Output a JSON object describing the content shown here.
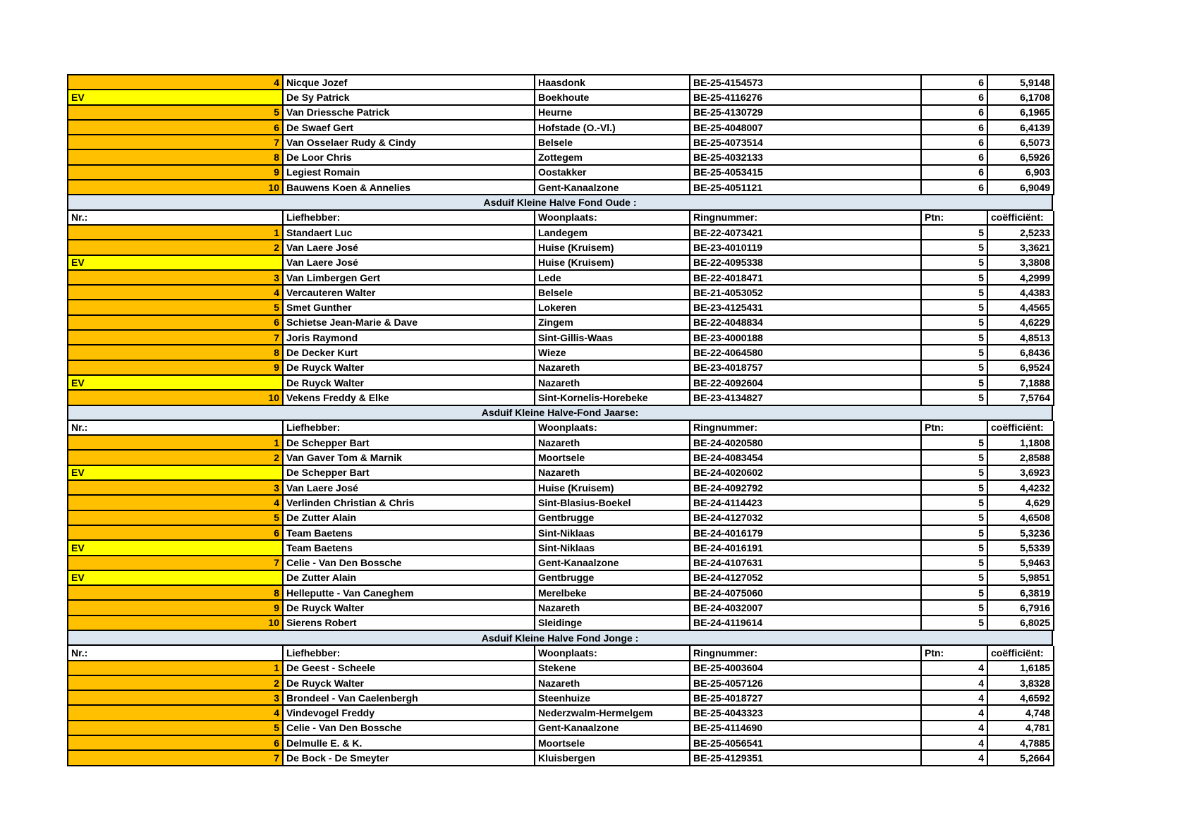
{
  "colors": {
    "rank_fill": "#FFC000",
    "ev_fill": "#FFFF00",
    "section_fill": "#DCE6F1",
    "border": "#000000"
  },
  "column_headers": {
    "nr": "Nr.:",
    "liefhebber": "Liefhebber:",
    "woonplaats": "Woonplaats:",
    "ringnummer": "Ringnummer:",
    "ptn": "Ptn:",
    "coefficient": "coëfficiënt:"
  },
  "sections": [
    {
      "title": null,
      "show_header": false,
      "rows": [
        {
          "nr": "4",
          "ev": false,
          "liefhebber": "Nicque Jozef",
          "woonplaats": "Haasdonk",
          "ring": "BE-25-4154573",
          "ptn": "6",
          "coef": "5,9148"
        },
        {
          "nr": "EV",
          "ev": true,
          "liefhebber": "De Sy Patrick",
          "woonplaats": "Boekhoute",
          "ring": "BE-25-4116276",
          "ptn": "6",
          "coef": "6,1708"
        },
        {
          "nr": "5",
          "ev": false,
          "liefhebber": "Van Driessche Patrick",
          "woonplaats": "Heurne",
          "ring": "BE-25-4130729",
          "ptn": "6",
          "coef": "6,1965"
        },
        {
          "nr": "6",
          "ev": false,
          "liefhebber": "De Swaef Gert",
          "woonplaats": "Hofstade (O.-Vl.)",
          "ring": "BE-25-4048007",
          "ptn": "6",
          "coef": "6,4139"
        },
        {
          "nr": "7",
          "ev": false,
          "liefhebber": "Van Osselaer Rudy & Cindy",
          "woonplaats": "Belsele",
          "ring": "BE-25-4073514",
          "ptn": "6",
          "coef": "6,5073"
        },
        {
          "nr": "8",
          "ev": false,
          "liefhebber": "De Loor Chris",
          "woonplaats": "Zottegem",
          "ring": "BE-25-4032133",
          "ptn": "6",
          "coef": "6,5926"
        },
        {
          "nr": "9",
          "ev": false,
          "liefhebber": "Legiest Romain",
          "woonplaats": "Oostakker",
          "ring": "BE-25-4053415",
          "ptn": "6",
          "coef": "6,903"
        },
        {
          "nr": "10",
          "ev": false,
          "liefhebber": "Bauwens Koen & Annelies",
          "woonplaats": "Gent-Kanaalzone",
          "ring": "BE-25-4051121",
          "ptn": "6",
          "coef": "6,9049"
        }
      ]
    },
    {
      "title": "Asduif Kleine Halve Fond Oude :",
      "show_header": true,
      "rows": [
        {
          "nr": "1",
          "ev": false,
          "liefhebber": "Standaert Luc",
          "woonplaats": "Landegem",
          "ring": "BE-22-4073421",
          "ptn": "5",
          "coef": "2,5233"
        },
        {
          "nr": "2",
          "ev": false,
          "liefhebber": "Van Laere José",
          "woonplaats": "Huise (Kruisem)",
          "ring": "BE-23-4010119",
          "ptn": "5",
          "coef": "3,3621"
        },
        {
          "nr": "EV",
          "ev": true,
          "liefhebber": "Van Laere José",
          "woonplaats": "Huise (Kruisem)",
          "ring": "BE-22-4095338",
          "ptn": "5",
          "coef": "3,3808"
        },
        {
          "nr": "3",
          "ev": false,
          "liefhebber": "Van Limbergen Gert",
          "woonplaats": "Lede",
          "ring": "BE-22-4018471",
          "ptn": "5",
          "coef": "4,2999"
        },
        {
          "nr": "4",
          "ev": false,
          "liefhebber": "Vercauteren Walter",
          "woonplaats": "Belsele",
          "ring": "BE-21-4053052",
          "ptn": "5",
          "coef": "4,4383"
        },
        {
          "nr": "5",
          "ev": false,
          "liefhebber": "Smet Gunther",
          "woonplaats": "Lokeren",
          "ring": "BE-23-4125431",
          "ptn": "5",
          "coef": "4,4565"
        },
        {
          "nr": "6",
          "ev": false,
          "liefhebber": "Schietse Jean-Marie & Dave",
          "woonplaats": "Zingem",
          "ring": "BE-22-4048834",
          "ptn": "5",
          "coef": "4,6229"
        },
        {
          "nr": "7",
          "ev": false,
          "liefhebber": "Joris Raymond",
          "woonplaats": "Sint-Gillis-Waas",
          "ring": "BE-23-4000188",
          "ptn": "5",
          "coef": "4,8513"
        },
        {
          "nr": "8",
          "ev": false,
          "liefhebber": "De Decker Kurt",
          "woonplaats": "Wieze",
          "ring": "BE-22-4064580",
          "ptn": "5",
          "coef": "6,8436"
        },
        {
          "nr": "9",
          "ev": false,
          "liefhebber": "De Ruyck Walter",
          "woonplaats": "Nazareth",
          "ring": "BE-23-4018757",
          "ptn": "5",
          "coef": "6,9524"
        },
        {
          "nr": "EV",
          "ev": true,
          "liefhebber": "De Ruyck Walter",
          "woonplaats": "Nazareth",
          "ring": "BE-22-4092604",
          "ptn": "5",
          "coef": "7,1888"
        },
        {
          "nr": "10",
          "ev": false,
          "liefhebber": "Vekens Freddy & Elke",
          "woonplaats": "Sint-Kornelis-Horebeke",
          "ring": "BE-23-4134827",
          "ptn": "5",
          "coef": "7,5764"
        }
      ]
    },
    {
      "title": "Asduif Kleine Halve-Fond Jaarse:",
      "show_header": true,
      "rows": [
        {
          "nr": "1",
          "ev": false,
          "liefhebber": "De Schepper Bart",
          "woonplaats": "Nazareth",
          "ring": "BE-24-4020580",
          "ptn": "5",
          "coef": "1,1808"
        },
        {
          "nr": "2",
          "ev": false,
          "liefhebber": "Van Gaver Tom & Marnik",
          "woonplaats": "Moortsele",
          "ring": "BE-24-4083454",
          "ptn": "5",
          "coef": "2,8588"
        },
        {
          "nr": "EV",
          "ev": true,
          "liefhebber": "De Schepper Bart",
          "woonplaats": "Nazareth",
          "ring": "BE-24-4020602",
          "ptn": "5",
          "coef": "3,6923"
        },
        {
          "nr": "3",
          "ev": false,
          "liefhebber": "Van Laere José",
          "woonplaats": "Huise (Kruisem)",
          "ring": "BE-24-4092792",
          "ptn": "5",
          "coef": "4,4232"
        },
        {
          "nr": "4",
          "ev": false,
          "liefhebber": "Verlinden Christian & Chris",
          "woonplaats": "Sint-Blasius-Boekel",
          "ring": "BE-24-4114423",
          "ptn": "5",
          "coef": "4,629"
        },
        {
          "nr": "5",
          "ev": false,
          "liefhebber": "De Zutter Alain",
          "woonplaats": "Gentbrugge",
          "ring": "BE-24-4127032",
          "ptn": "5",
          "coef": "4,6508"
        },
        {
          "nr": "6",
          "ev": false,
          "liefhebber": "Team Baetens",
          "woonplaats": "Sint-Niklaas",
          "ring": "BE-24-4016179",
          "ptn": "5",
          "coef": "5,3236"
        },
        {
          "nr": "EV",
          "ev": true,
          "liefhebber": "Team Baetens",
          "woonplaats": "Sint-Niklaas",
          "ring": "BE-24-4016191",
          "ptn": "5",
          "coef": "5,5339"
        },
        {
          "nr": "7",
          "ev": false,
          "liefhebber": "Celie - Van Den Bossche",
          "woonplaats": "Gent-Kanaalzone",
          "ring": "BE-24-4107631",
          "ptn": "5",
          "coef": "5,9463"
        },
        {
          "nr": "EV",
          "ev": true,
          "liefhebber": "De Zutter Alain",
          "woonplaats": "Gentbrugge",
          "ring": "BE-24-4127052",
          "ptn": "5",
          "coef": "5,9851"
        },
        {
          "nr": "8",
          "ev": false,
          "liefhebber": "Helleputte - Van Caneghem",
          "woonplaats": "Merelbeke",
          "ring": "BE-24-4075060",
          "ptn": "5",
          "coef": "6,3819"
        },
        {
          "nr": "9",
          "ev": false,
          "liefhebber": "De Ruyck Walter",
          "woonplaats": "Nazareth",
          "ring": "BE-24-4032007",
          "ptn": "5",
          "coef": "6,7916"
        },
        {
          "nr": "10",
          "ev": false,
          "liefhebber": "Sierens Robert",
          "woonplaats": "Sleidinge",
          "ring": "BE-24-4119614",
          "ptn": "5",
          "coef": "6,8025"
        }
      ]
    },
    {
      "title": "Asduif Kleine Halve Fond Jonge :",
      "show_header": true,
      "rows": [
        {
          "nr": "1",
          "ev": false,
          "liefhebber": "De Geest - Scheele",
          "woonplaats": "Stekene",
          "ring": "BE-25-4003604",
          "ptn": "4",
          "coef": "1,6185"
        },
        {
          "nr": "2",
          "ev": false,
          "liefhebber": "De Ruyck Walter",
          "woonplaats": "Nazareth",
          "ring": "BE-25-4057126",
          "ptn": "4",
          "coef": "3,8328"
        },
        {
          "nr": "3",
          "ev": false,
          "liefhebber": "Brondeel - Van Caelenbergh",
          "woonplaats": "Steenhuize",
          "ring": "BE-25-4018727",
          "ptn": "4",
          "coef": "4,6592"
        },
        {
          "nr": "4",
          "ev": false,
          "liefhebber": "Vindevogel Freddy",
          "woonplaats": "Nederzwalm-Hermelgem",
          "ring": "BE-25-4043323",
          "ptn": "4",
          "coef": "4,748"
        },
        {
          "nr": "5",
          "ev": false,
          "liefhebber": "Celie - Van Den Bossche",
          "woonplaats": "Gent-Kanaalzone",
          "ring": "BE-25-4114690",
          "ptn": "4",
          "coef": "4,781"
        },
        {
          "nr": "6",
          "ev": false,
          "liefhebber": "Delmulle E. & K.",
          "woonplaats": "Moortsele",
          "ring": "BE-25-4056541",
          "ptn": "4",
          "coef": "4,7885"
        },
        {
          "nr": "7",
          "ev": false,
          "liefhebber": "De Bock - De Smeyter",
          "woonplaats": "Kluisbergen",
          "ring": "BE-25-4129351",
          "ptn": "4",
          "coef": "5,2664"
        }
      ]
    }
  ]
}
